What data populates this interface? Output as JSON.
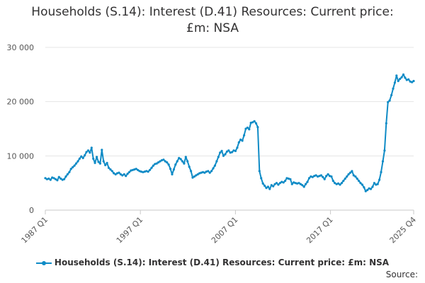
{
  "chart_data": {
    "type": "line",
    "title": [
      "Households (S.14): Interest (D.41) Resources: Current price:",
      "£m: NSA"
    ],
    "xlabel": "",
    "ylabel": "",
    "ylim": [
      0,
      30000
    ],
    "yticks": [
      0,
      10000,
      20000,
      30000
    ],
    "ytick_labels": [
      "0",
      "10 000",
      "20 000",
      "30 000"
    ],
    "xticks": [
      "1987 Q1",
      "1997 Q1",
      "2007 Q1",
      "2017 Q1",
      "2025 Q4"
    ],
    "x_start": "1987 Q1",
    "x_end": "2025 Q4",
    "grid": "horizontal",
    "legend_position": "bottom",
    "series": [
      {
        "name": "Households (S.14): Interest (D.41) Resources: Current price: £m: NSA",
        "color": "#0f8bc6",
        "values": [
          5900,
          5700,
          5800,
          5600,
          6000,
          5900,
          5700,
          5500,
          6100,
          5800,
          5600,
          5700,
          6200,
          6600,
          7000,
          7600,
          7900,
          8200,
          8600,
          9000,
          9500,
          9900,
          9600,
          10100,
          10700,
          11000,
          10600,
          11500,
          9500,
          8700,
          9800,
          8900,
          8600,
          11100,
          9000,
          8300,
          8700,
          7800,
          7500,
          7200,
          6800,
          6600,
          6800,
          6900,
          6600,
          6400,
          6600,
          6300,
          6700,
          7000,
          7300,
          7400,
          7500,
          7600,
          7400,
          7200,
          7100,
          7000,
          7100,
          7200,
          7100,
          7400,
          7800,
          8200,
          8500,
          8600,
          8800,
          9000,
          9200,
          9300,
          9000,
          8800,
          8400,
          7600,
          6600,
          7500,
          8400,
          9000,
          9600,
          9400,
          9000,
          8600,
          9800,
          9000,
          8000,
          7200,
          6000,
          6200,
          6400,
          6600,
          6800,
          6900,
          7000,
          6900,
          7100,
          7200,
          6900,
          7200,
          7700,
          8200,
          9000,
          9800,
          10600,
          10900,
          10000,
          10300,
          10800,
          11000,
          10600,
          10700,
          11000,
          10900,
          11500,
          12500,
          13000,
          12800,
          13800,
          15000,
          15200,
          14900,
          16100,
          16200,
          16400,
          16000,
          15300,
          7200,
          5900,
          4900,
          4500,
          4100,
          4300,
          3900,
          4600,
          4400,
          4800,
          5000,
          4700,
          5000,
          5200,
          5100,
          5400,
          5900,
          5800,
          5700,
          4800,
          5100,
          5000,
          4900,
          5000,
          4800,
          4600,
          4300,
          4800,
          5200,
          5900,
          6200,
          6100,
          6300,
          6400,
          6200,
          6300,
          6400,
          6100,
          5700,
          6300,
          6600,
          6300,
          6200,
          5400,
          5000,
          4800,
          4900,
          4700,
          5000,
          5400,
          5800,
          6200,
          6600,
          6900,
          7200,
          6400,
          6200,
          5800,
          5400,
          5000,
          4700,
          4200,
          3500,
          3700,
          4000,
          3900,
          4300,
          5000,
          4700,
          4800,
          5600,
          7000,
          9000,
          11000,
          16000,
          19900,
          20200,
          21200,
          22400,
          23500,
          24800,
          23800,
          24200,
          24500,
          25000,
          24400,
          24000,
          24100,
          23700,
          23600,
          23800
        ]
      }
    ],
    "source_label": "Source:"
  }
}
